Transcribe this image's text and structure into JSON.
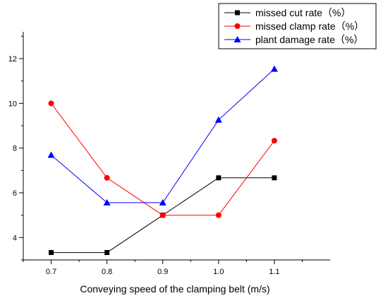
{
  "chart_data": {
    "type": "line",
    "title": "",
    "xlabel": "Conveying speed of the clamping belt (m/s)",
    "ylabel": "",
    "x": [
      0.7,
      0.8,
      0.9,
      1.0,
      1.1
    ],
    "x_tick_labels": [
      "0.7",
      "0.8",
      "0.9",
      "1.0",
      "1.1"
    ],
    "xlim": [
      0.65,
      1.2
    ],
    "ylim": [
      3,
      13.2
    ],
    "y_ticks": [
      4,
      6,
      8,
      10,
      12
    ],
    "y_tick_labels": [
      "4",
      "6",
      "8",
      "10",
      "12"
    ],
    "grid": false,
    "legend_position": "top-right",
    "series": [
      {
        "name": "missed cut rate（%）",
        "color": "#000000",
        "marker": "square",
        "values": [
          3.33,
          3.33,
          5.0,
          6.67,
          6.67
        ]
      },
      {
        "name": "missed clamp rate（%）",
        "color": "#ff0000",
        "marker": "circle",
        "values": [
          10.0,
          6.67,
          5.0,
          5.0,
          8.33
        ]
      },
      {
        "name": "plant damage rate（%）",
        "color": "#0000ff",
        "marker": "triangle",
        "values": [
          7.69,
          5.56,
          5.56,
          9.26,
          11.54
        ]
      }
    ]
  }
}
